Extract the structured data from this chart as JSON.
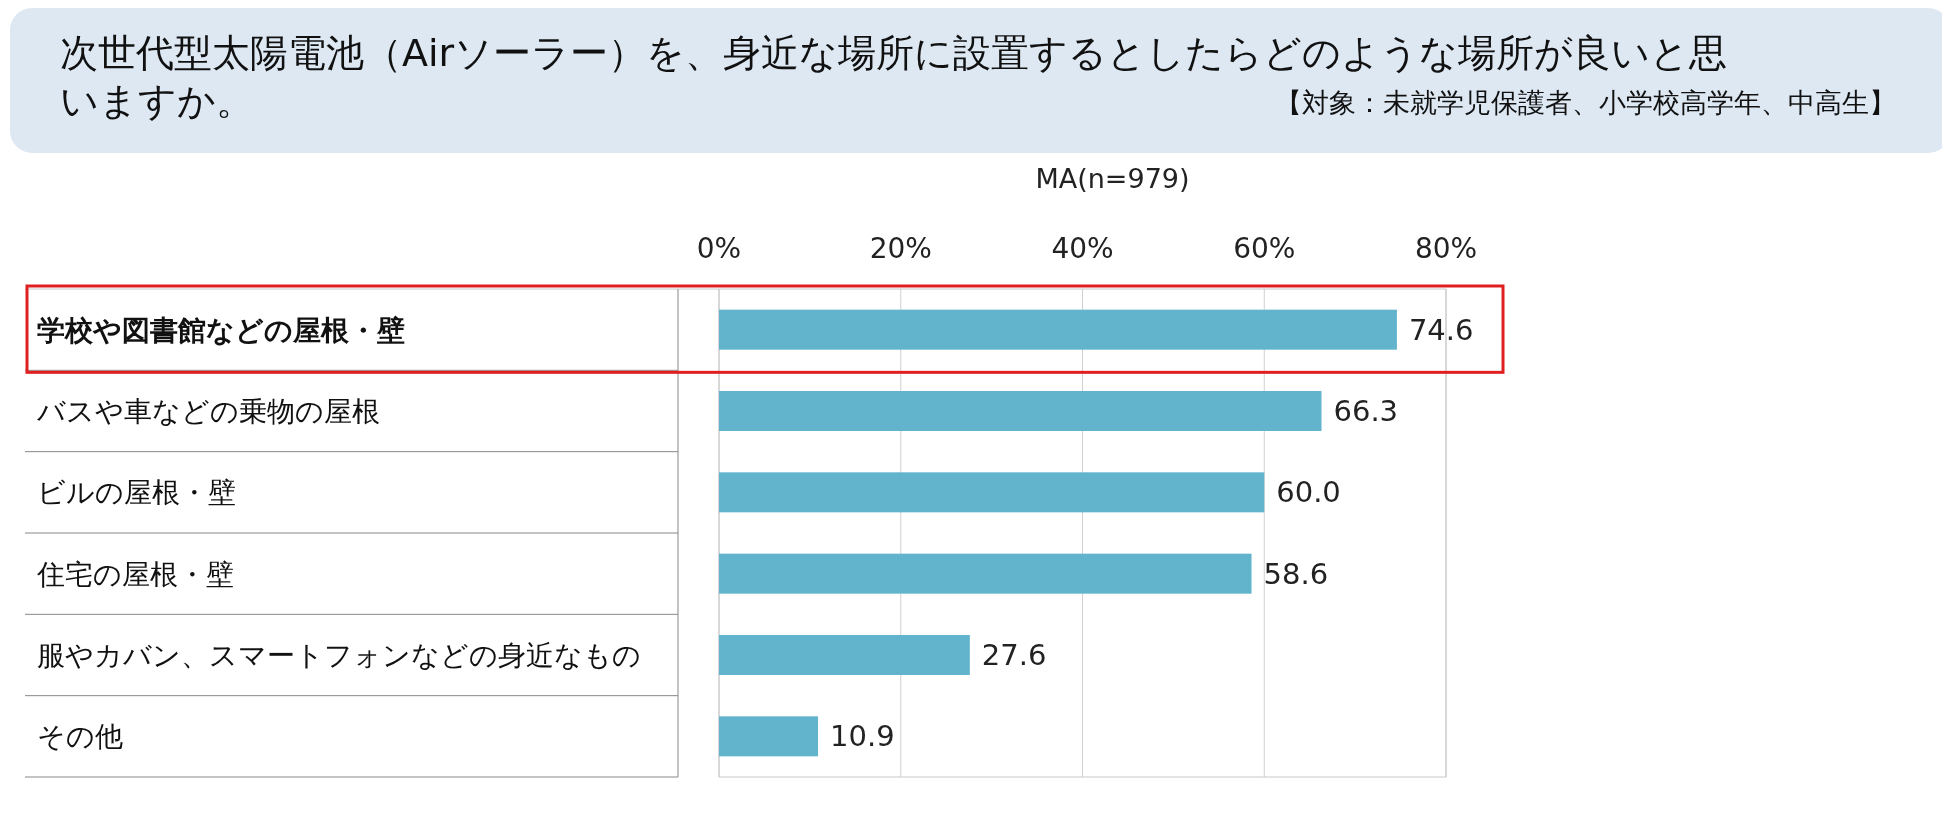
{
  "chart_data": {
    "type": "bar",
    "orientation": "horizontal",
    "title": "次世代型太陽電池（Airソーラー）を、身近な場所に設置するとしたらどのような場所が良いと思いますか。",
    "subtitle": "【対象：未就学児保護者、小学校高学年、中高生】",
    "annotations": [
      "MA(n=979)"
    ],
    "categories": [
      "学校や図書館などの屋根・壁",
      "バスや車などの乗物の屋根",
      "ビルの屋根・壁",
      "住宅の屋根・壁",
      "服やカバン、スマートフォンなどの身近なもの",
      "その他"
    ],
    "values": [
      74.6,
      66.3,
      60.0,
      58.6,
      27.6,
      10.9
    ],
    "value_labels": [
      "74.6",
      "66.3",
      "60.0",
      "58.6",
      "27.6",
      "10.9"
    ],
    "color": "#62b4cc",
    "xlim": [
      0,
      80
    ],
    "xticks": [
      {
        "value": 0,
        "label": "0%"
      },
      {
        "value": 20,
        "label": "20%"
      },
      {
        "value": 40,
        "label": "40%"
      },
      {
        "value": 60,
        "label": "60%"
      },
      {
        "value": 80,
        "label": "80%"
      }
    ],
    "grid": "x"
  }
}
